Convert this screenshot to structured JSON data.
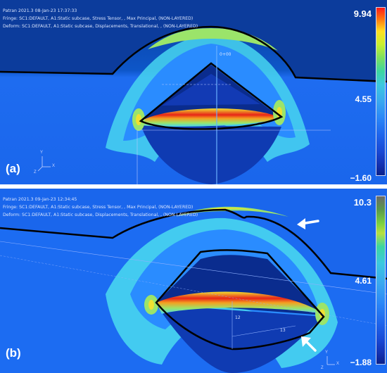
{
  "panel_a": {
    "label": "(a)",
    "header": {
      "line1": "Patran 2021.3 08-Jan-23 17:37:33",
      "line2": "Fringe: SC1:DEFAULT, A1:Static subcase, Stress Tensor, , Max Principal, (NON-LAYERED)",
      "line3": "Deform: SC1:DEFAULT, A1:Static subcase, Displacements, Translational, , (NON-LAYERED)"
    },
    "scale": {
      "max": "9.94",
      "mid": "4.55",
      "min": "−1.60"
    },
    "node_label": "0+00",
    "axis_labels": {
      "y": "Y",
      "z": "Z",
      "x": "X"
    }
  },
  "panel_b": {
    "label": "(b)",
    "header": {
      "line1": "Patran 2021.3 09-Jan-23 12:34:45",
      "line2": "Fringe: SC1:DEFAULT, A1:Static subcase, Stress Tensor, , Max Principal, (NON-LAYERED)",
      "line3": "Deform: SC1:DEFAULT, A1:Static subcase, Displacements, Translational, , (NON-LAYERED)"
    },
    "scale": {
      "max": "10.3",
      "mid": "4.61",
      "min": "−1.88"
    },
    "node_labels": {
      "a": "12",
      "b": "13"
    },
    "axis_labels": {
      "y": "Y",
      "z": "Z",
      "x": "X"
    }
  },
  "colors": {
    "background_top": "#0a3a9a",
    "background_bottom": "#1a6af0",
    "fringe_blue": "#2a8cff",
    "fringe_cyan": "#48d6f0",
    "fringe_green": "#9be46a",
    "fringe_yellow": "#f0e030",
    "fringe_red": "#e82418",
    "outline": "#000000"
  },
  "icons": {
    "arrow_upper": "white-arrow-icon",
    "arrow_lower": "white-arrow-icon"
  }
}
